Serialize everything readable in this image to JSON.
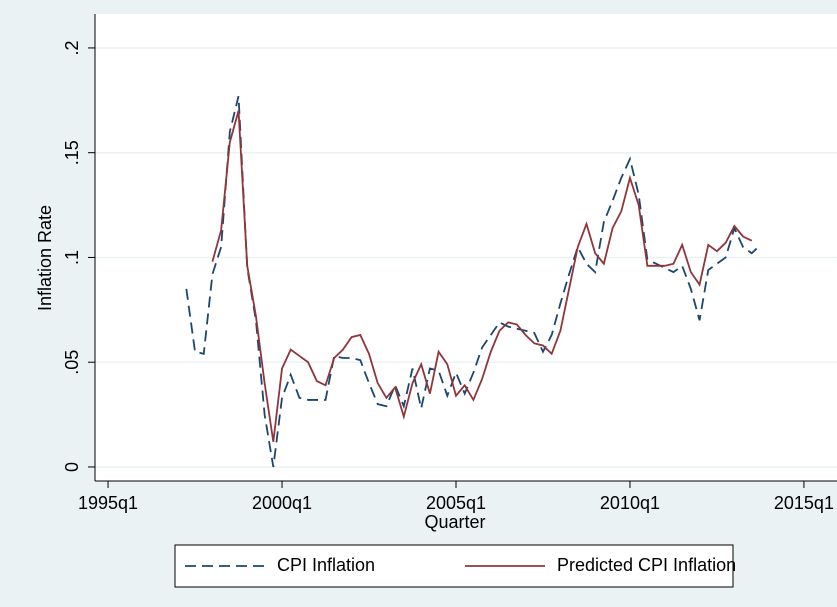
{
  "chart_data": {
    "type": "line",
    "xlabel": "Quarter",
    "ylabel": "Inflation Rate",
    "x": [
      149,
      150,
      151,
      152,
      153,
      154,
      155,
      156,
      157,
      158,
      159,
      160,
      161,
      162,
      163,
      164,
      165,
      166,
      167,
      168,
      169,
      170,
      171,
      172,
      173,
      174,
      175,
      176,
      177,
      178,
      179,
      180,
      181,
      182,
      183,
      184,
      185,
      186,
      187,
      188,
      189,
      190,
      191,
      192,
      193,
      194,
      195,
      196,
      197,
      198,
      199,
      200,
      201,
      202,
      203,
      204,
      205,
      206,
      207,
      208,
      209,
      210,
      211,
      212,
      213,
      214,
      215
    ],
    "series": [
      {
        "name": "CPI Inflation",
        "color": "#1a476f",
        "dashed": true,
        "values": [
          0.085,
          0.055,
          0.054,
          0.092,
          0.105,
          0.16,
          0.177,
          0.095,
          0.07,
          0.025,
          0.0,
          0.033,
          0.044,
          0.033,
          0.032,
          0.032,
          0.032,
          0.053,
          0.052,
          0.052,
          0.051,
          0.04,
          0.03,
          0.029,
          0.039,
          0.029,
          0.047,
          0.028,
          0.047,
          0.046,
          0.034,
          0.045,
          0.035,
          0.045,
          0.057,
          0.063,
          0.069,
          0.067,
          0.066,
          0.065,
          0.064,
          0.055,
          0.063,
          0.078,
          0.092,
          0.105,
          0.097,
          0.093,
          0.117,
          0.127,
          0.138,
          0.147,
          0.13,
          0.099,
          0.097,
          0.095,
          0.093,
          0.096,
          0.085,
          0.07,
          0.094,
          0.097,
          0.1,
          0.114,
          0.105,
          0.102,
          0.106
        ]
      },
      {
        "name": "Predicted CPI Inflation",
        "color": "#90353b",
        "dashed": false,
        "values": [
          null,
          null,
          null,
          0.098,
          0.113,
          0.155,
          0.17,
          0.096,
          0.072,
          0.04,
          0.012,
          0.047,
          0.056,
          0.053,
          0.05,
          0.041,
          0.039,
          0.052,
          0.056,
          0.062,
          0.063,
          0.054,
          0.04,
          0.033,
          0.038,
          0.024,
          0.04,
          0.049,
          0.035,
          0.055,
          0.049,
          0.034,
          0.039,
          0.032,
          0.042,
          0.055,
          0.065,
          0.069,
          0.068,
          0.063,
          0.059,
          0.058,
          0.054,
          0.065,
          0.085,
          0.105,
          0.116,
          0.102,
          0.097,
          0.114,
          0.122,
          0.138,
          0.125,
          0.096,
          0.096,
          0.096,
          0.097,
          0.106,
          0.093,
          0.087,
          0.106,
          0.103,
          0.107,
          0.115,
          0.11,
          0.108,
          null
        ]
      }
    ],
    "xlim": [
      138.5,
      223.8
    ],
    "xticks": [
      {
        "value": 140,
        "label": "1995q1"
      },
      {
        "value": 160,
        "label": "2000q1"
      },
      {
        "value": 180,
        "label": "2005q1"
      },
      {
        "value": 200,
        "label": "2010q1"
      },
      {
        "value": 220,
        "label": "2015q1"
      }
    ],
    "ylim": [
      -0.0067,
      0.2162
    ],
    "yticks": [
      0,
      {
        "value": 0.05,
        "label": ".05"
      },
      {
        "value": 0.1,
        "label": ".1"
      },
      {
        "value": 0.15,
        "label": ".15"
      },
      {
        "value": 0.2,
        "label": ".2"
      }
    ],
    "grid": true,
    "legend": "bottom"
  }
}
